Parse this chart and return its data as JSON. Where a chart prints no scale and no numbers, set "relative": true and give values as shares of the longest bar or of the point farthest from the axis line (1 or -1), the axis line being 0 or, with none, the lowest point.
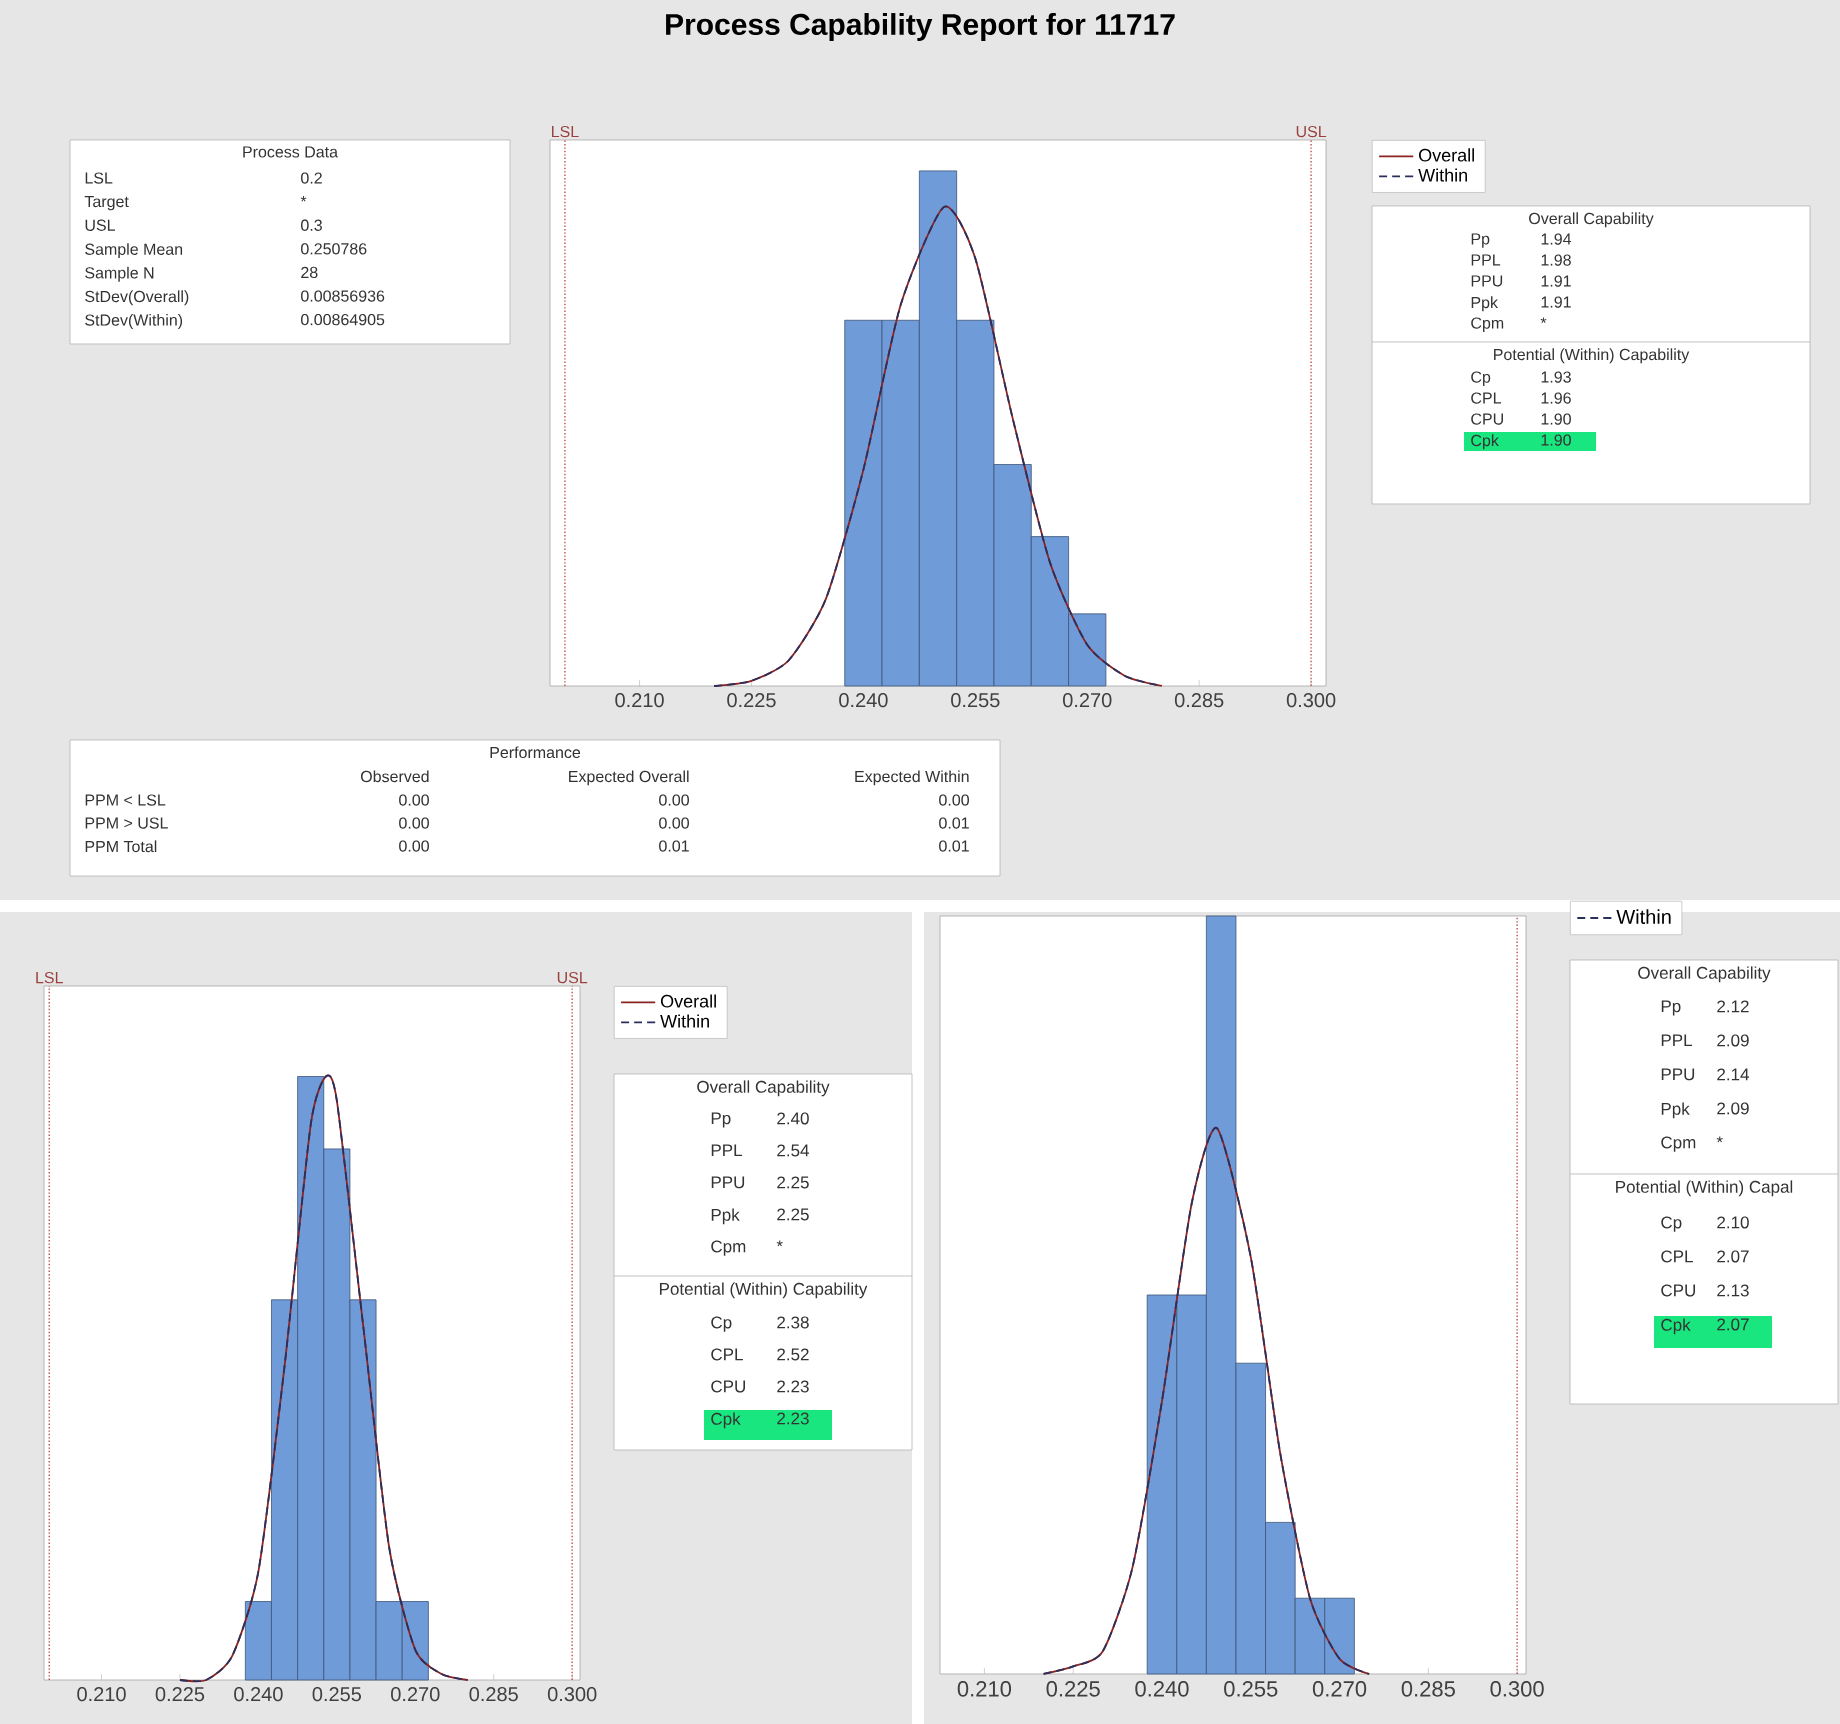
{
  "chart_data": [
    {
      "type": "other",
      "title": "Process Data",
      "annotations": [
        "LSL",
        "0.2",
        "Target",
        "*",
        "USL",
        "0.3",
        "Sample Mean",
        "0.250786",
        "Sample N",
        "28",
        "StDev(Overall)",
        "0.00856936",
        "StDev(Within)",
        "0.00864905"
      ]
    },
    {
      "type": "histogram",
      "title": "Process Capability Report for 11717",
      "relative": true,
      "legend": "top right",
      "xlim": [
        0.198,
        0.302
      ],
      "xticks": [
        {
          "value": 0.21,
          "label": "0.210"
        },
        0.225,
        {
          "value": 0.24,
          "label": "0.240"
        },
        0.255,
        {
          "value": 0.27,
          "label": "0.270"
        },
        0.285,
        {
          "value": 0.3,
          "label": "0.300"
        }
      ],
      "ref_lines": [
        {
          "axis": "x",
          "value": 0.2,
          "label": "LSL",
          "color": "#c0504d",
          "line_style": "dotted"
        },
        {
          "axis": "x",
          "value": 0.3,
          "label": "USL",
          "color": "#c0504d",
          "line_style": "dotted"
        }
      ],
      "series": [
        {
          "type": "histogram",
          "color": "#6f9bd8",
          "bins": [
            0.2375,
            0.2425,
            0.2475,
            0.2525,
            0.2575,
            0.2625,
            0.2675,
            0.2725
          ],
          "values": [
            0.71,
            0.71,
            1,
            0.71,
            0.43,
            0.29,
            0.14
          ]
        },
        {
          "type": "line",
          "name": "Overall",
          "color": "#8b2323",
          "line_style": "solid",
          "x": [
            0.22,
            0.225,
            0.23,
            0.235,
            0.24,
            0.245,
            0.2508,
            0.255,
            0.26,
            0.265,
            0.27,
            0.275,
            0.28
          ],
          "values": [
            0,
            0.01,
            0.05,
            0.17,
            0.42,
            0.74,
            0.93,
            0.83,
            0.52,
            0.24,
            0.08,
            0.02,
            0
          ]
        },
        {
          "type": "line",
          "name": "Within",
          "color": "#2b2f5c",
          "line_style": "dashed",
          "x": [
            0.22,
            0.225,
            0.23,
            0.235,
            0.24,
            0.245,
            0.2508,
            0.255,
            0.26,
            0.265,
            0.27,
            0.275,
            0.28
          ],
          "values": [
            0,
            0.01,
            0.05,
            0.17,
            0.42,
            0.74,
            0.93,
            0.83,
            0.52,
            0.24,
            0.08,
            0.02,
            0
          ]
        }
      ]
    },
    {
      "type": "other",
      "title": "Overall Capability",
      "subtitle": "Potential (Within) Capability",
      "color": "#19e67f",
      "annotations": [
        "Pp",
        "1.94",
        "PPL",
        "1.98",
        "PPU",
        "1.91",
        "Ppk",
        "1.91",
        "Cpm",
        "*",
        "Cp",
        "1.93",
        "CPL",
        "1.96",
        "CPU",
        "1.90",
        "Cpk",
        "1.90"
      ]
    },
    {
      "type": "other",
      "title": "Performance",
      "annotations": [
        "Observed",
        "Expected Overall",
        "Expected Within",
        "PPM < LSL",
        "0.00",
        "0.00",
        "0.00",
        "PPM > USL",
        "0.00",
        "0.00",
        "0.01",
        "PPM Total",
        "0.00",
        "0.01",
        "0.01"
      ]
    },
    {
      "type": "histogram",
      "relative": true,
      "legend": "top right",
      "xlim": [
        0.199,
        0.3015
      ],
      "xticks": [
        {
          "value": 0.21,
          "label": "0.210"
        },
        0.225,
        {
          "value": 0.24,
          "label": "0.240"
        },
        0.255,
        {
          "value": 0.27,
          "label": "0.270"
        },
        0.285,
        {
          "value": 0.3,
          "label": "0.300"
        }
      ],
      "ref_lines": [
        {
          "axis": "x",
          "value": 0.2,
          "label": "LSL",
          "color": "#c0504d",
          "line_style": "dotted"
        },
        {
          "axis": "x",
          "value": 0.3,
          "label": "USL",
          "color": "#c0504d",
          "line_style": "dotted"
        }
      ],
      "series": [
        {
          "type": "histogram",
          "color": "#6f9bd8",
          "bins": [
            0.2375,
            0.2425,
            0.2475,
            0.2525,
            0.2575,
            0.2625,
            0.2675,
            0.2725
          ],
          "values": [
            0.13,
            0.63,
            1,
            0.88,
            0.63,
            0.13,
            0.13
          ]
        },
        {
          "type": "line",
          "name": "Overall",
          "color": "#8b2323",
          "line_style": "solid",
          "x": [
            0.225,
            0.23,
            0.235,
            0.24,
            0.245,
            0.25,
            0.2529,
            0.255,
            0.26,
            0.265,
            0.27,
            0.275,
            0.28
          ],
          "values": [
            0,
            0,
            0.04,
            0.18,
            0.52,
            0.92,
            1,
            0.96,
            0.59,
            0.22,
            0.05,
            0.01,
            0
          ]
        },
        {
          "type": "line",
          "name": "Within",
          "color": "#2b2f5c",
          "line_style": "dashed",
          "x": [
            0.225,
            0.23,
            0.235,
            0.24,
            0.245,
            0.25,
            0.2529,
            0.255,
            0.26,
            0.265,
            0.27,
            0.275,
            0.28
          ],
          "values": [
            0,
            0,
            0.04,
            0.18,
            0.52,
            0.92,
            1,
            0.96,
            0.59,
            0.22,
            0.05,
            0.01,
            0
          ]
        }
      ]
    },
    {
      "type": "other",
      "title": "Overall Capability",
      "subtitle": "Potential (Within) Capability",
      "color": "#19e67f",
      "annotations": [
        "Pp",
        "2.40",
        "PPL",
        "2.54",
        "PPU",
        "2.25",
        "Ppk",
        "2.25",
        "Cpm",
        "*",
        "Cp",
        "2.38",
        "CPL",
        "2.52",
        "CPU",
        "2.23",
        "Cpk",
        "2.23"
      ]
    },
    {
      "type": "histogram",
      "relative": true,
      "legend": "top right",
      "xlim": [
        0.2025,
        0.3015
      ],
      "xticks": [
        {
          "value": 0.21,
          "label": "0.210"
        },
        0.225,
        {
          "value": 0.24,
          "label": "0.240"
        },
        0.255,
        {
          "value": 0.27,
          "label": "0.270"
        },
        0.285,
        {
          "value": 0.3,
          "label": "0.300"
        }
      ],
      "ref_lines": [
        {
          "axis": "x",
          "value": 0.3,
          "color": "#c0504d",
          "line_style": "dotted"
        }
      ],
      "series": [
        {
          "type": "histogram",
          "color": "#6f9bd8",
          "bins": [
            0.2375,
            0.2425,
            0.2475,
            0.2525,
            0.2575,
            0.2625,
            0.2675,
            0.2725
          ],
          "values": [
            0.5,
            0.5,
            1,
            0.41,
            0.2,
            0.1,
            0.1
          ]
        },
        {
          "type": "line",
          "color": "#8b2323",
          "line_style": "solid",
          "x": [
            0.22,
            0.225,
            0.23,
            0.235,
            0.24,
            0.245,
            0.2493,
            0.255,
            0.26,
            0.265,
            0.27,
            0.275
          ],
          "values": [
            0,
            0.01,
            0.03,
            0.14,
            0.36,
            0.62,
            0.72,
            0.55,
            0.29,
            0.1,
            0.02,
            0
          ]
        },
        {
          "type": "line",
          "name": "Within",
          "color": "#2b2f5c",
          "line_style": "dashed",
          "x": [
            0.22,
            0.225,
            0.23,
            0.235,
            0.24,
            0.245,
            0.2493,
            0.255,
            0.26,
            0.265,
            0.27,
            0.275
          ],
          "values": [
            0,
            0.01,
            0.03,
            0.14,
            0.36,
            0.62,
            0.72,
            0.55,
            0.29,
            0.1,
            0.02,
            0
          ]
        }
      ]
    },
    {
      "type": "other",
      "title": "Overall Capability",
      "subtitle": "Potential (Within) Capal",
      "color": "#19e67f",
      "annotations": [
        "Pp",
        "2.12",
        "PPL",
        "2.09",
        "PPU",
        "2.14",
        "Ppk",
        "2.09",
        "Cpm",
        "*",
        "Cp",
        "2.10",
        "CPL",
        "2.07",
        "CPU",
        "2.13",
        "Cpk",
        "2.07"
      ]
    }
  ]
}
